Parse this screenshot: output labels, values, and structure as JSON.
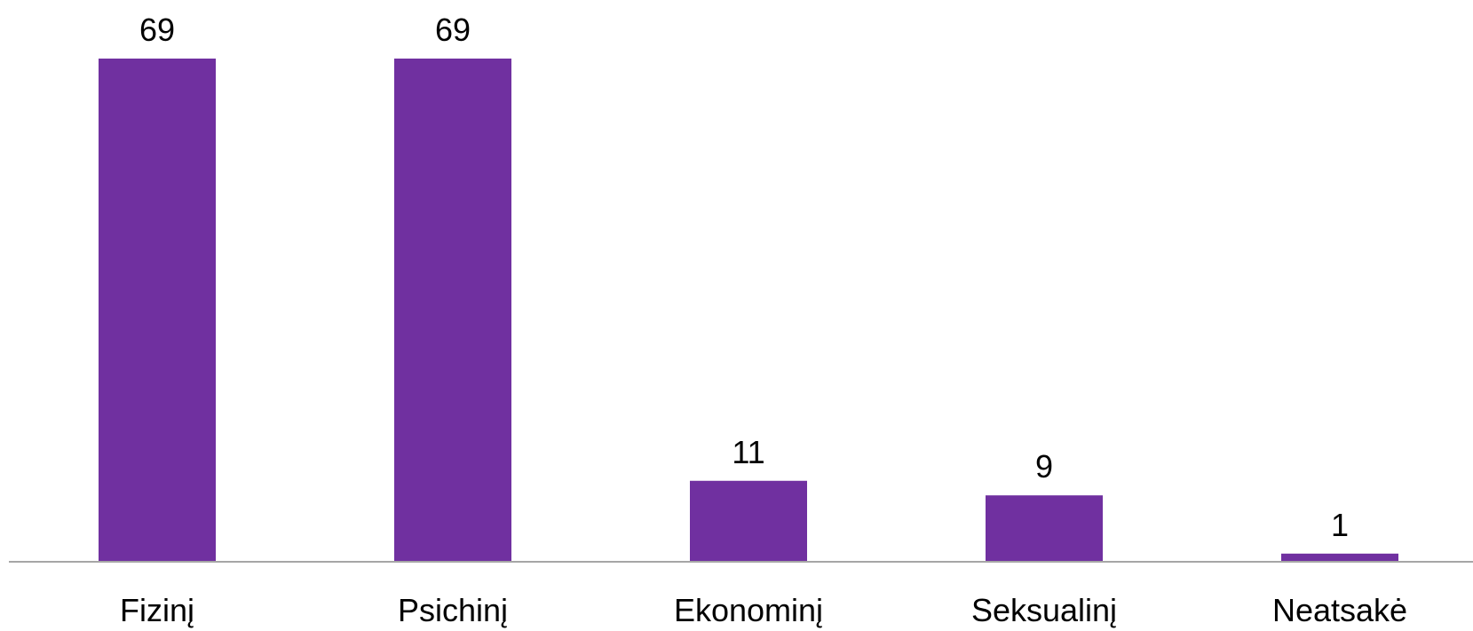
{
  "chart_data": {
    "type": "bar",
    "categories": [
      "Fizinį",
      "Psichinį",
      "Ekonominį",
      "Seksualinį",
      "Neatsakė"
    ],
    "values": [
      69,
      69,
      11,
      9,
      1
    ],
    "data_labels": [
      "69",
      "69",
      "11",
      "9",
      "1"
    ],
    "title": "",
    "xlabel": "",
    "ylabel": "",
    "ylim": [
      0,
      69
    ],
    "grid": false,
    "legend": "none",
    "bar_color": "#7030A0",
    "axis_color": "#A6A6A6"
  }
}
